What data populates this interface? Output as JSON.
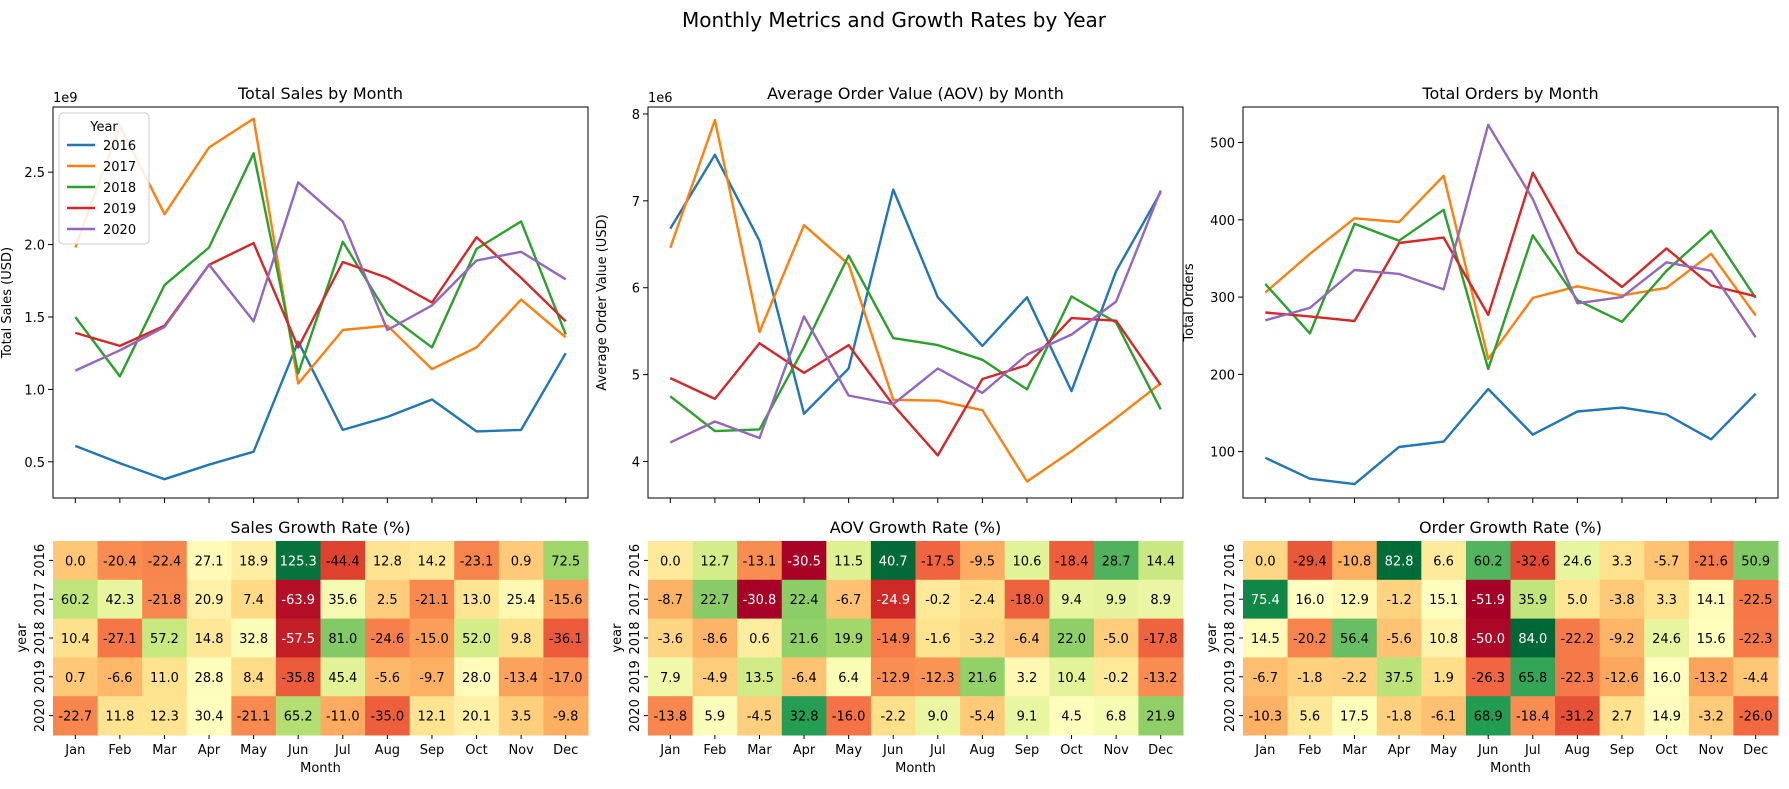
{
  "suptitle": "Monthly Metrics and Growth Rates by Year",
  "colors": {
    "2016": "#1f77b4",
    "2017": "#ff7f0e",
    "2018": "#2ca02c",
    "2019": "#d62728",
    "2020": "#9467bd"
  },
  "months": [
    "Jan",
    "Feb",
    "Mar",
    "Apr",
    "May",
    "Jun",
    "Jul",
    "Aug",
    "Sep",
    "Oct",
    "Nov",
    "Dec"
  ],
  "years": [
    "2016",
    "2017",
    "2018",
    "2019",
    "2020"
  ],
  "chart_data": [
    {
      "type": "line",
      "title": "Total Sales by Month",
      "ylabel": "Total Sales (USD)",
      "xlabel": "",
      "offset_label": "1e9",
      "ylim": [
        0.25,
        2.95
      ],
      "yticks": [
        0.5,
        1.0,
        1.5,
        2.0,
        2.5
      ],
      "ytick_labels": [
        "0.5",
        "1.0",
        "1.5",
        "2.0",
        "2.5"
      ],
      "legend": {
        "title": "Year",
        "placement": "top-left"
      },
      "series": [
        {
          "name": "2016",
          "values": [
            0.61,
            0.49,
            0.38,
            0.48,
            0.57,
            1.33,
            0.72,
            0.81,
            0.93,
            0.71,
            0.72,
            1.25
          ]
        },
        {
          "name": "2017",
          "values": [
            1.98,
            2.82,
            2.21,
            2.67,
            2.87,
            1.04,
            1.41,
            1.44,
            1.14,
            1.29,
            1.62,
            1.36
          ]
        },
        {
          "name": "2018",
          "values": [
            1.5,
            1.09,
            1.72,
            1.98,
            2.63,
            1.11,
            2.02,
            1.52,
            1.29,
            1.97,
            2.16,
            1.38
          ]
        },
        {
          "name": "2019",
          "values": [
            1.39,
            1.3,
            1.44,
            1.86,
            2.01,
            1.29,
            1.88,
            1.77,
            1.6,
            2.05,
            1.77,
            1.47
          ]
        },
        {
          "name": "2020",
          "values": [
            1.13,
            1.27,
            1.43,
            1.86,
            1.47,
            2.43,
            2.16,
            1.41,
            1.58,
            1.89,
            1.95,
            1.76
          ]
        }
      ]
    },
    {
      "type": "line",
      "title": "Average Order Value (AOV) by Month",
      "ylabel": "Average Order Value (USD)",
      "xlabel": "",
      "offset_label": "1e6",
      "ylim": [
        3.58,
        8.08
      ],
      "yticks": [
        4,
        5,
        6,
        7,
        8
      ],
      "ytick_labels": [
        "4",
        "5",
        "6",
        "7",
        "8"
      ],
      "series": [
        {
          "name": "2016",
          "values": [
            6.68,
            7.53,
            6.54,
            4.55,
            5.07,
            7.13,
            5.89,
            5.33,
            5.89,
            4.81,
            6.19,
            7.1
          ]
        },
        {
          "name": "2017",
          "values": [
            6.46,
            7.93,
            5.49,
            6.72,
            6.27,
            4.71,
            4.7,
            4.59,
            3.77,
            4.12,
            4.5,
            4.9
          ]
        },
        {
          "name": "2018",
          "values": [
            4.75,
            4.35,
            4.37,
            5.31,
            6.37,
            5.42,
            5.34,
            5.17,
            4.83,
            5.9,
            5.6,
            4.6
          ]
        },
        {
          "name": "2019",
          "values": [
            4.96,
            4.72,
            5.36,
            5.02,
            5.34,
            4.65,
            4.07,
            4.95,
            5.11,
            5.65,
            5.62,
            4.88
          ]
        },
        {
          "name": "2020",
          "values": [
            4.22,
            4.46,
            4.27,
            5.67,
            4.76,
            4.66,
            5.07,
            4.79,
            5.23,
            5.46,
            5.84,
            7.12
          ]
        }
      ]
    },
    {
      "type": "line",
      "title": "Total Orders by Month",
      "ylabel": "Total Orders",
      "xlabel": "",
      "ylim": [
        40,
        546
      ],
      "yticks": [
        100,
        200,
        300,
        400,
        500
      ],
      "ytick_labels": [
        "100",
        "200",
        "300",
        "400",
        "500"
      ],
      "series": [
        {
          "name": "2016",
          "values": [
            92,
            65,
            58,
            106,
            113,
            181,
            122,
            152,
            157,
            148,
            116,
            175
          ]
        },
        {
          "name": "2017",
          "values": [
            306,
            356,
            402,
            397,
            457,
            220,
            299,
            314,
            302,
            312,
            356,
            276
          ]
        },
        {
          "name": "2018",
          "values": [
            317,
            253,
            395,
            373,
            413,
            207,
            380,
            296,
            268,
            334,
            386,
            299
          ]
        },
        {
          "name": "2019",
          "values": [
            280,
            275,
            269,
            370,
            377,
            277,
            461,
            358,
            313,
            363,
            315,
            301
          ]
        },
        {
          "name": "2020",
          "values": [
            270,
            286,
            335,
            330,
            310,
            523,
            427,
            292,
            300,
            345,
            334,
            248
          ]
        }
      ]
    },
    {
      "type": "heatmap",
      "title": "Sales Growth Rate (%)",
      "xlabel": "Month",
      "ylabel": "year",
      "vmin": -70,
      "vmax": 130,
      "values": [
        [
          0.0,
          -20.4,
          -22.4,
          27.1,
          18.9,
          125.3,
          -44.4,
          12.8,
          14.2,
          -23.1,
          0.9,
          72.5
        ],
        [
          60.2,
          42.3,
          -21.8,
          20.9,
          7.4,
          -63.9,
          35.6,
          2.5,
          -21.1,
          13.0,
          25.4,
          -15.6
        ],
        [
          10.4,
          -27.1,
          57.2,
          14.8,
          32.8,
          -57.5,
          81.0,
          -24.6,
          -15.0,
          52.0,
          9.8,
          -36.1
        ],
        [
          0.7,
          -6.6,
          11.0,
          28.8,
          8.4,
          -35.8,
          45.4,
          -5.6,
          -9.7,
          28.0,
          -13.4,
          -17.0
        ],
        [
          -22.7,
          11.8,
          12.3,
          30.4,
          -21.1,
          65.2,
          -11.0,
          -35.0,
          12.1,
          20.1,
          3.5,
          -9.8
        ]
      ]
    },
    {
      "type": "heatmap",
      "title": "AOV Growth Rate (%)",
      "xlabel": "Month",
      "ylabel": "year",
      "vmin": -31,
      "vmax": 41,
      "values": [
        [
          0.0,
          12.7,
          -13.1,
          -30.5,
          11.5,
          40.7,
          -17.5,
          -9.5,
          10.6,
          -18.4,
          28.7,
          14.4
        ],
        [
          -8.7,
          22.7,
          -30.8,
          22.4,
          -6.7,
          -24.9,
          -0.2,
          -2.4,
          -18.0,
          9.4,
          9.9,
          8.9
        ],
        [
          -3.6,
          -8.6,
          0.6,
          21.6,
          19.9,
          -14.9,
          -1.6,
          -3.2,
          -6.4,
          22.0,
          -5.0,
          -17.8
        ],
        [
          7.9,
          -4.9,
          13.5,
          -6.4,
          6.4,
          -12.9,
          -12.3,
          21.6,
          3.2,
          10.4,
          -0.2,
          -13.2
        ],
        [
          -13.8,
          5.9,
          -4.5,
          32.8,
          -16.0,
          -2.2,
          9.0,
          -5.4,
          9.1,
          4.5,
          6.8,
          21.9
        ]
      ]
    },
    {
      "type": "heatmap",
      "title": "Order Growth Rate (%)",
      "xlabel": "Month",
      "ylabel": "year",
      "vmin": -52,
      "vmax": 84,
      "values": [
        [
          0.0,
          -29.4,
          -10.8,
          82.8,
          6.6,
          60.2,
          -32.6,
          24.6,
          3.3,
          -5.7,
          -21.6,
          50.9
        ],
        [
          75.4,
          16.0,
          12.9,
          -1.2,
          15.1,
          -51.9,
          35.9,
          5.0,
          -3.8,
          3.3,
          14.1,
          -22.5
        ],
        [
          14.5,
          -20.2,
          56.4,
          -5.6,
          10.8,
          -50.0,
          84.0,
          -22.2,
          -9.2,
          24.6,
          15.6,
          -22.3
        ],
        [
          -6.7,
          -1.8,
          -2.2,
          37.5,
          1.9,
          -26.3,
          65.8,
          -22.3,
          -12.6,
          16.0,
          -13.2,
          -4.4
        ],
        [
          -10.3,
          5.6,
          17.5,
          -1.8,
          -6.1,
          68.9,
          -18.4,
          -31.2,
          2.7,
          14.9,
          -3.2,
          -26.0
        ]
      ]
    }
  ]
}
